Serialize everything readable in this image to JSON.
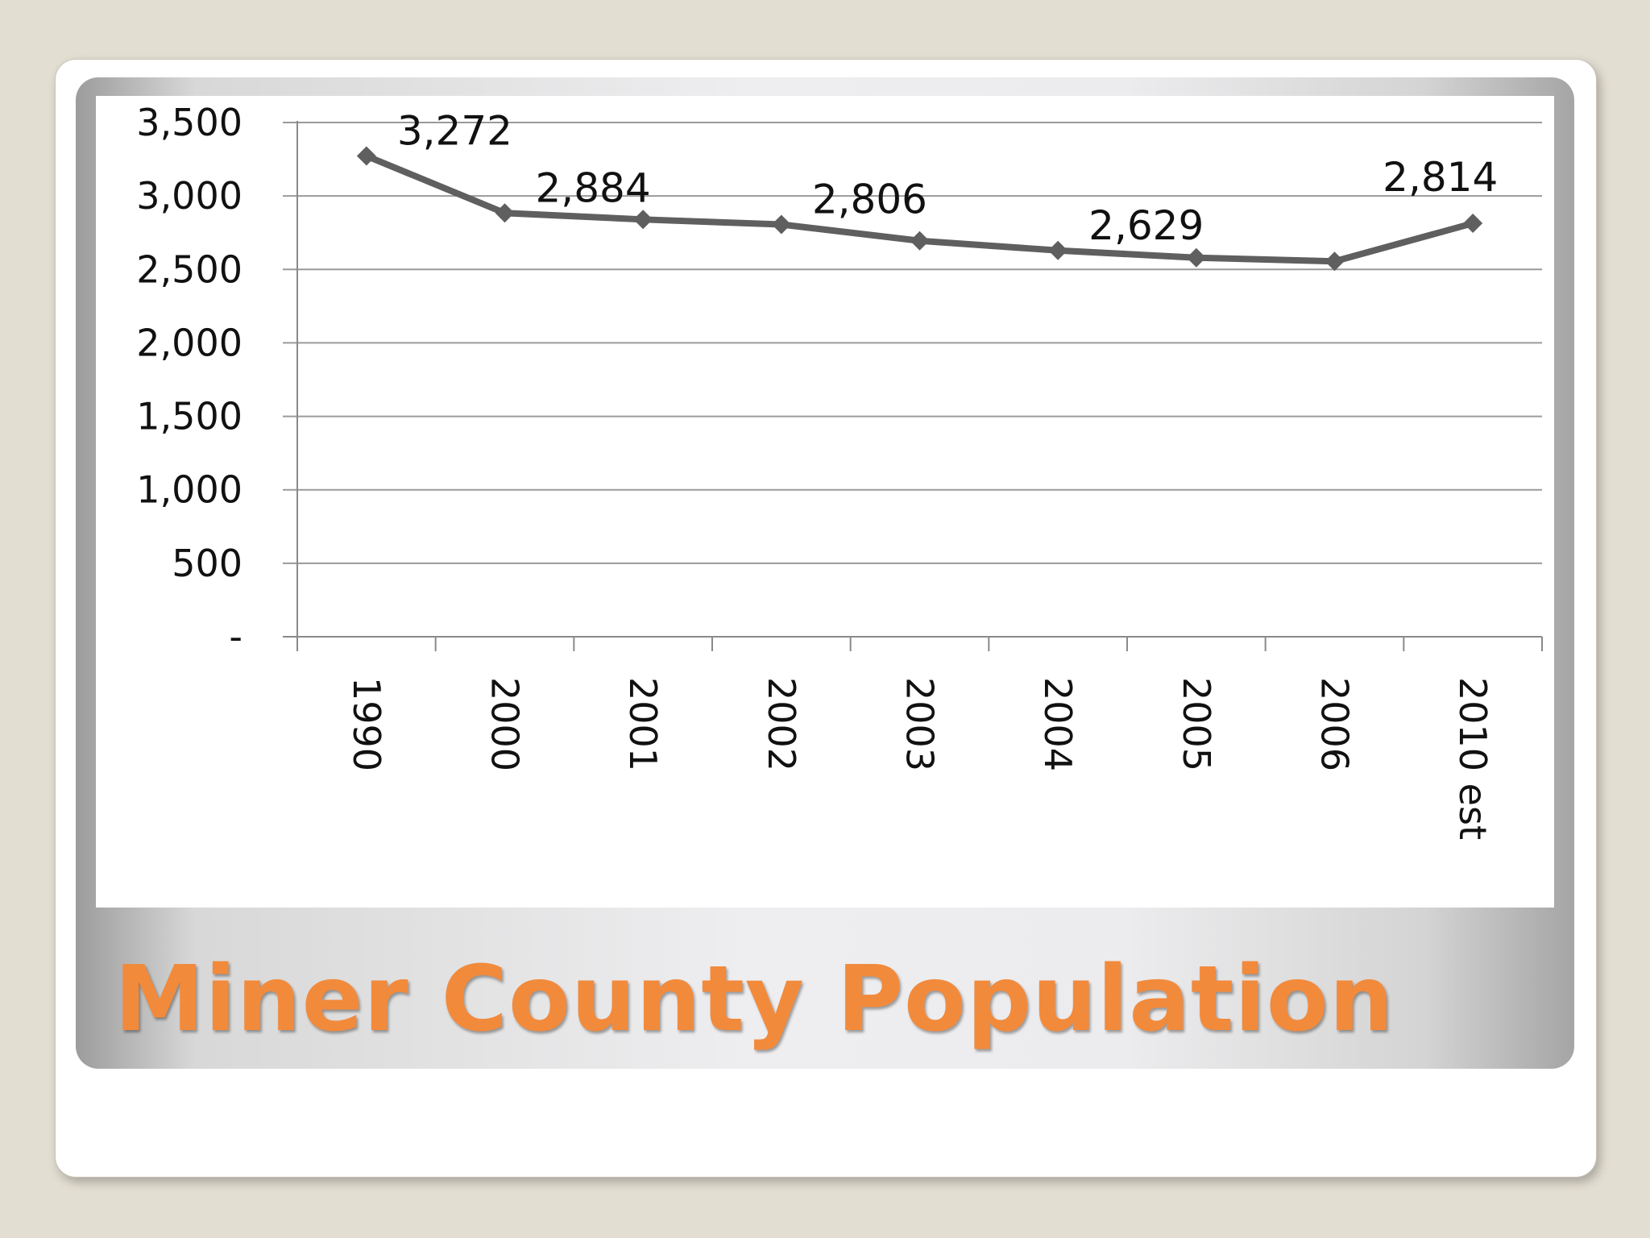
{
  "slide": {
    "title": "Miner County Population"
  },
  "colors": {
    "background": "#e3ded2",
    "title": "#f28a3c",
    "series_line": "#5f5f5f",
    "gridline": "#9a9a9a"
  },
  "chart_data": {
    "type": "line",
    "categories": [
      "1990",
      "2000",
      "2001",
      "2002",
      "2003",
      "2004",
      "2005",
      "2006",
      "2010 est"
    ],
    "series": [
      {
        "values": [
          3272,
          2884,
          2840,
          2806,
          2695,
          2629,
          2580,
          2555,
          2814
        ]
      }
    ],
    "data_labels": [
      {
        "index": 0,
        "text": "3,272"
      },
      {
        "index": 1,
        "text": "2,884"
      },
      {
        "index": 3,
        "text": "2,806"
      },
      {
        "index": 5,
        "text": "2,629"
      },
      {
        "index": 8,
        "text": "2,814"
      }
    ],
    "y_ticks": [
      {
        "value": 0,
        "label": "-"
      },
      {
        "value": 500,
        "label": "500"
      },
      {
        "value": 1000,
        "label": "1,000"
      },
      {
        "value": 1500,
        "label": "1,500"
      },
      {
        "value": 2000,
        "label": "2,000"
      },
      {
        "value": 2500,
        "label": "2,500"
      },
      {
        "value": 3000,
        "label": "3,000"
      },
      {
        "value": 3500,
        "label": "3,500"
      }
    ],
    "ylim": [
      0,
      3500
    ],
    "grid": true,
    "legend": "none",
    "x_tick_rotation": "vertical",
    "title": "",
    "xlabel": "",
    "ylabel": ""
  }
}
